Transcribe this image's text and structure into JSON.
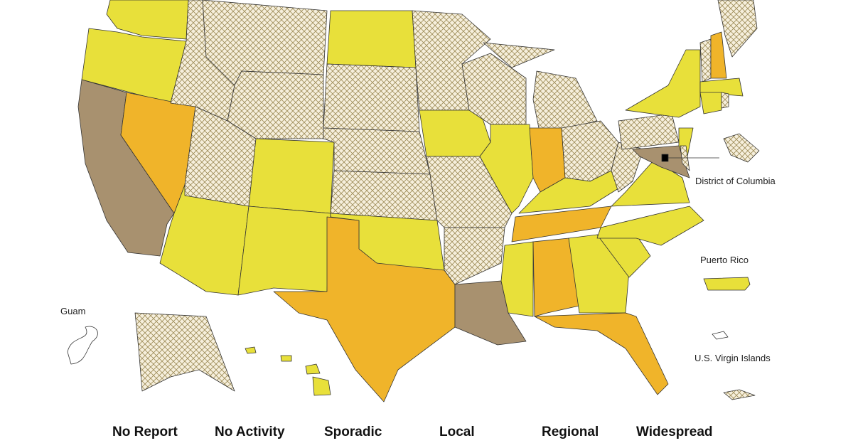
{
  "territory_labels": [
    "District of Columbia",
    "Puerto Rico",
    "Guam",
    "U.S. Virgin Islands"
  ],
  "legend": [
    "No Report",
    "No Activity",
    "Sporadic",
    "Local",
    "Regional",
    "Widespread"
  ]
}
